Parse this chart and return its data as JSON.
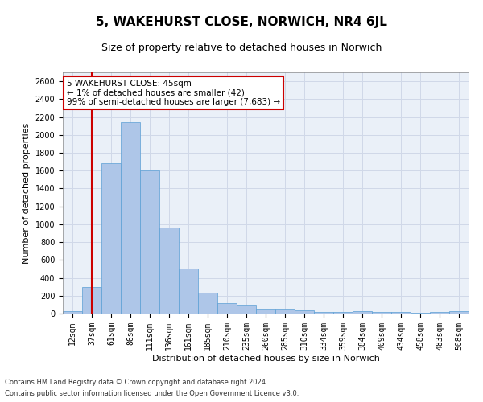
{
  "title1": "5, WAKEHURST CLOSE, NORWICH, NR4 6JL",
  "title2": "Size of property relative to detached houses in Norwich",
  "xlabel": "Distribution of detached houses by size in Norwich",
  "ylabel": "Number of detached properties",
  "categories": [
    "12sqm",
    "37sqm",
    "61sqm",
    "86sqm",
    "111sqm",
    "136sqm",
    "161sqm",
    "185sqm",
    "210sqm",
    "235sqm",
    "260sqm",
    "285sqm",
    "310sqm",
    "334sqm",
    "359sqm",
    "384sqm",
    "409sqm",
    "434sqm",
    "458sqm",
    "483sqm",
    "508sqm"
  ],
  "values": [
    25,
    300,
    1680,
    2140,
    1600,
    960,
    505,
    235,
    120,
    100,
    50,
    50,
    35,
    20,
    20,
    30,
    20,
    20,
    5,
    20,
    25
  ],
  "bar_color": "#aec6e8",
  "bar_edge_color": "#5a9fd4",
  "grid_color": "#d0d8e8",
  "bg_color": "#eaf0f8",
  "vline_x": 1,
  "vline_color": "#cc0000",
  "annotation_text": "5 WAKEHURST CLOSE: 45sqm\n← 1% of detached houses are smaller (42)\n99% of semi-detached houses are larger (7,683) →",
  "annotation_box_color": "#ffffff",
  "annotation_box_edge": "#cc0000",
  "ylim": [
    0,
    2700
  ],
  "yticks": [
    0,
    200,
    400,
    600,
    800,
    1000,
    1200,
    1400,
    1600,
    1800,
    2000,
    2200,
    2400,
    2600
  ],
  "footnote1": "Contains HM Land Registry data © Crown copyright and database right 2024.",
  "footnote2": "Contains public sector information licensed under the Open Government Licence v3.0.",
  "title1_fontsize": 11,
  "title2_fontsize": 9,
  "xlabel_fontsize": 8,
  "ylabel_fontsize": 8,
  "tick_fontsize": 7,
  "footnote_fontsize": 6
}
